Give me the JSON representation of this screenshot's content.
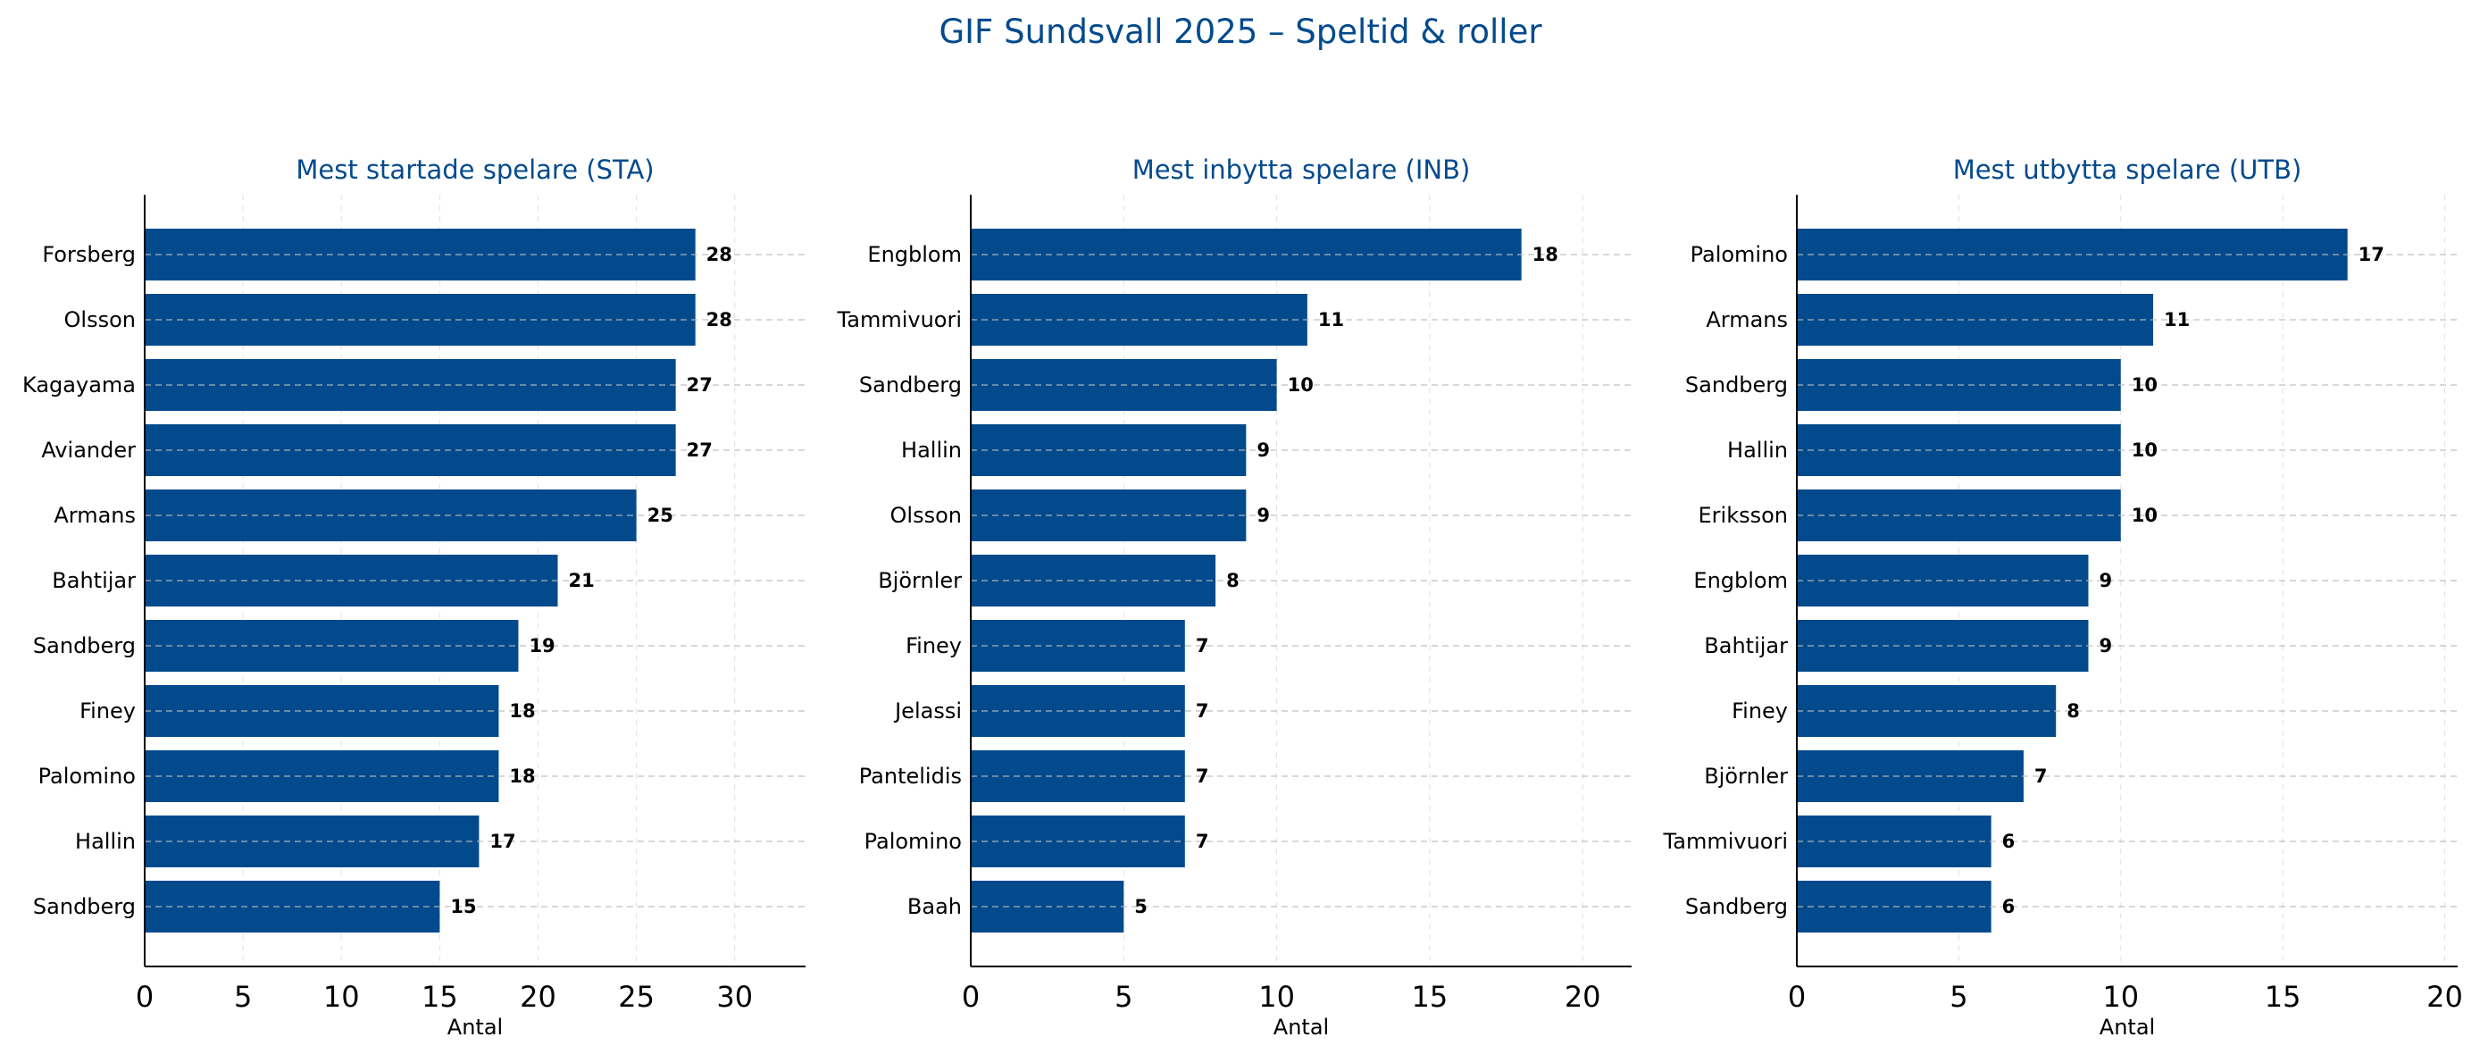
{
  "figure": {
    "title": "GIF Sundsvall 2025 – Speltid & roller"
  },
  "colors": {
    "bar": "#034A8D",
    "title": "#034A8D",
    "text": "#000000",
    "grid": "#bbbbbb"
  },
  "chart_data": [
    {
      "type": "bar",
      "orientation": "horizontal",
      "title": "Mest startade spelare (STA)",
      "xlabel": "Antal",
      "ylabel": "",
      "categories": [
        "Forsberg",
        "Olsson",
        "Kagayama",
        "Aviander",
        "Armans",
        "Bahtijar",
        "Sandberg",
        "Finey",
        "Palomino",
        "Hallin",
        "Sandberg"
      ],
      "values": [
        28,
        28,
        27,
        27,
        25,
        21,
        19,
        18,
        18,
        17,
        15
      ],
      "xlim": [
        0,
        33.6
      ],
      "xticks": [
        0,
        5,
        10,
        15,
        20,
        25,
        30
      ],
      "xtick_labels": [
        "0",
        "5",
        "10",
        "15",
        "20",
        "25",
        "30"
      ],
      "value_labels": [
        "28",
        "28",
        "27",
        "27",
        "25",
        "21",
        "19",
        "18",
        "18",
        "17",
        "15"
      ],
      "grid": true
    },
    {
      "type": "bar",
      "orientation": "horizontal",
      "title": "Mest inbytta spelare (INB)",
      "xlabel": "Antal",
      "ylabel": "",
      "categories": [
        "Engblom",
        "Tammivuori",
        "Sandberg",
        "Hallin",
        "Olsson",
        "Björnler",
        "Finey",
        "Jelassi",
        "Pantelidis",
        "Palomino",
        "Baah"
      ],
      "values": [
        18,
        11,
        10,
        9,
        9,
        8,
        7,
        7,
        7,
        7,
        5
      ],
      "xlim": [
        0,
        21.6
      ],
      "xticks": [
        0,
        5,
        10,
        15,
        20
      ],
      "xtick_labels": [
        "0",
        "5",
        "10",
        "15",
        "20"
      ],
      "value_labels": [
        "18",
        "11",
        "10",
        "9",
        "9",
        "8",
        "7",
        "7",
        "7",
        "7",
        "5"
      ],
      "grid": true
    },
    {
      "type": "bar",
      "orientation": "horizontal",
      "title": "Mest utbytta spelare (UTB)",
      "xlabel": "Antal",
      "ylabel": "",
      "categories": [
        "Palomino",
        "Armans",
        "Sandberg",
        "Hallin",
        "Eriksson",
        "Engblom",
        "Bahtijar",
        "Finey",
        "Björnler",
        "Tammivuori",
        "Sandberg"
      ],
      "values": [
        17,
        11,
        10,
        10,
        10,
        9,
        9,
        8,
        7,
        6,
        6
      ],
      "xlim": [
        0,
        20.4
      ],
      "xticks": [
        0,
        5,
        10,
        15,
        20
      ],
      "xtick_labels": [
        "0",
        "5",
        "10",
        "15",
        "20"
      ],
      "value_labels": [
        "17",
        "11",
        "10",
        "10",
        "10",
        "9",
        "9",
        "8",
        "7",
        "6",
        "6"
      ],
      "grid": true
    }
  ]
}
